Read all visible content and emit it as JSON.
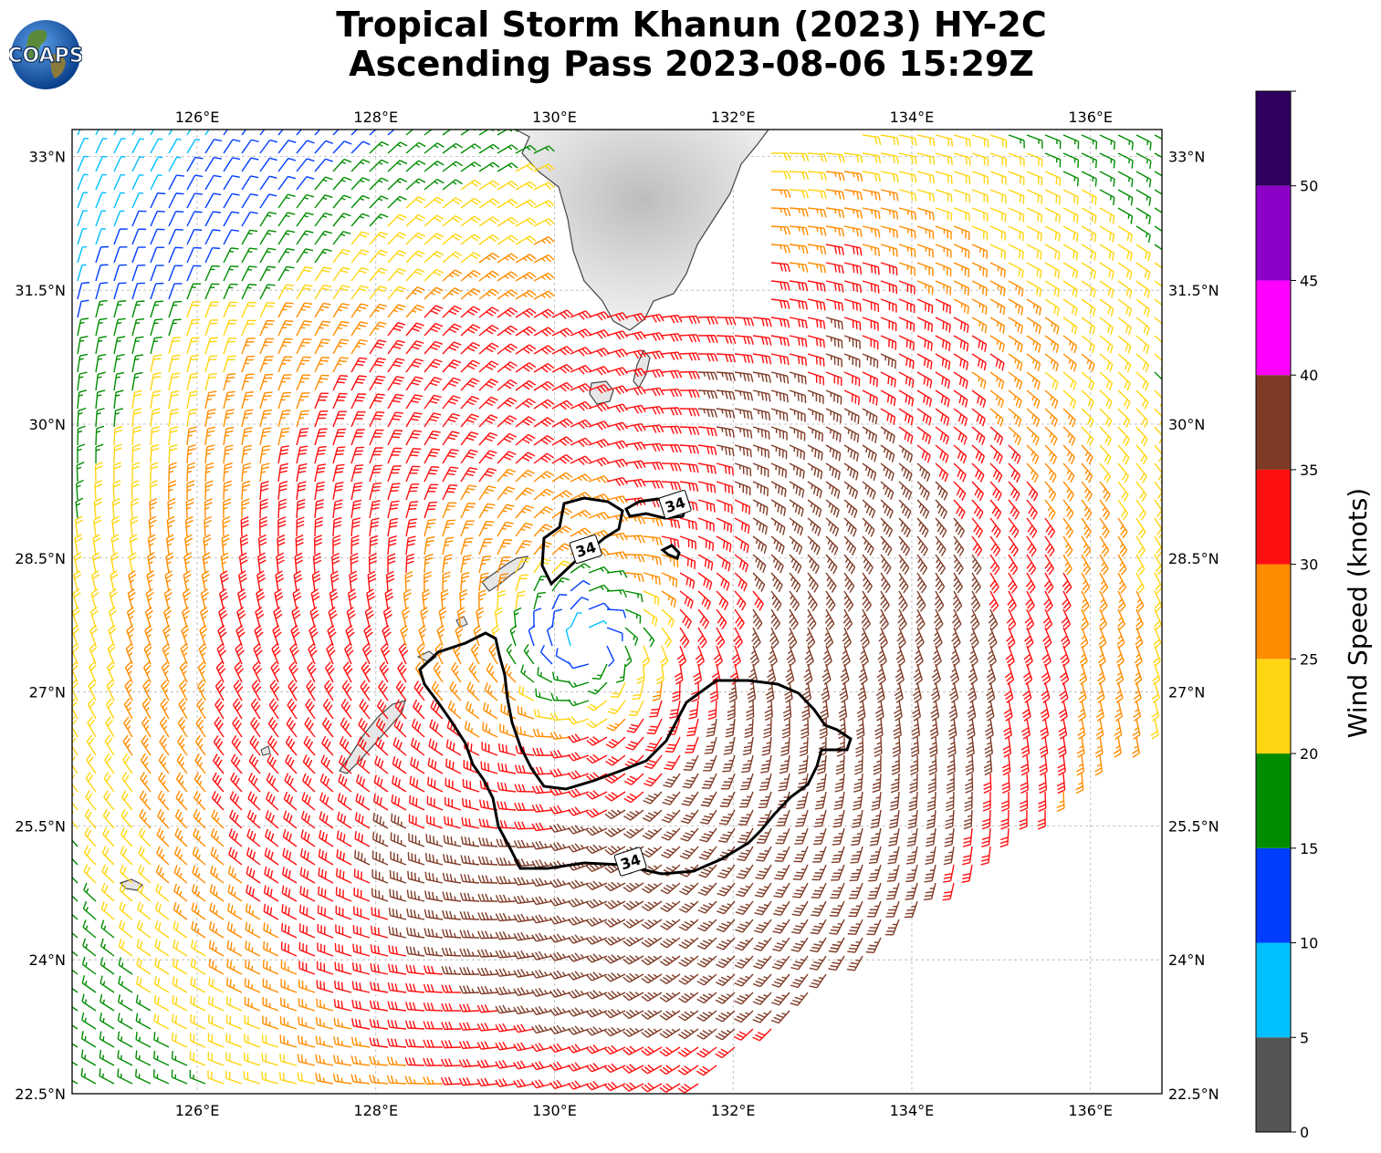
{
  "header": {
    "title_line1": "Tropical Storm Khanun (2023) HY-2C",
    "title_line2": "Ascending Pass 2023-08-06 15:29Z",
    "logo_text": "COAPS"
  },
  "map": {
    "lon_range": [
      124.6,
      136.8
    ],
    "lat_range": [
      22.5,
      33.3
    ],
    "lon_ticks": [
      "126°E",
      "128°E",
      "130°E",
      "132°E",
      "134°E",
      "136°E"
    ],
    "lon_tick_values": [
      126,
      128,
      130,
      132,
      134,
      136
    ],
    "lat_ticks": [
      "22.5°N",
      "24°N",
      "25.5°N",
      "27°N",
      "28.5°N",
      "30°N",
      "31.5°N",
      "33°N"
    ],
    "lat_tick_values": [
      22.5,
      24,
      25.5,
      27,
      28.5,
      30,
      31.5,
      33
    ],
    "gridlines": true,
    "storm_center": [
      130.4,
      27.5
    ],
    "contour_label": "34",
    "contour_label_positions": [
      [
        131.35,
        29.1
      ],
      [
        130.35,
        28.6
      ],
      [
        130.85,
        25.1
      ]
    ],
    "colors": {
      "land": "#e6e6e6",
      "coast": "#444444",
      "contour": "#000000"
    }
  },
  "colorbar": {
    "label": "Wind Speed (knots)",
    "tick_labels": [
      "0",
      "5",
      "10",
      "15",
      "20",
      "25",
      "30",
      "35",
      "40",
      "45",
      "50"
    ],
    "range": [
      0,
      55
    ],
    "bins": [
      {
        "from": 0,
        "to": 5,
        "color": "#555555"
      },
      {
        "from": 5,
        "to": 10,
        "color": "#00bfff"
      },
      {
        "from": 10,
        "to": 15,
        "color": "#003dff"
      },
      {
        "from": 15,
        "to": 20,
        "color": "#008c00"
      },
      {
        "from": 20,
        "to": 25,
        "color": "#ffd512"
      },
      {
        "from": 25,
        "to": 30,
        "color": "#ff8c00"
      },
      {
        "from": 30,
        "to": 35,
        "color": "#ff0f0f"
      },
      {
        "from": 35,
        "to": 40,
        "color": "#7f3b26"
      },
      {
        "from": 40,
        "to": 45,
        "color": "#ff00ff"
      },
      {
        "from": 45,
        "to": 50,
        "color": "#8c00c8"
      },
      {
        "from": 50,
        "to": 55,
        "color": "#2f005f"
      }
    ]
  }
}
